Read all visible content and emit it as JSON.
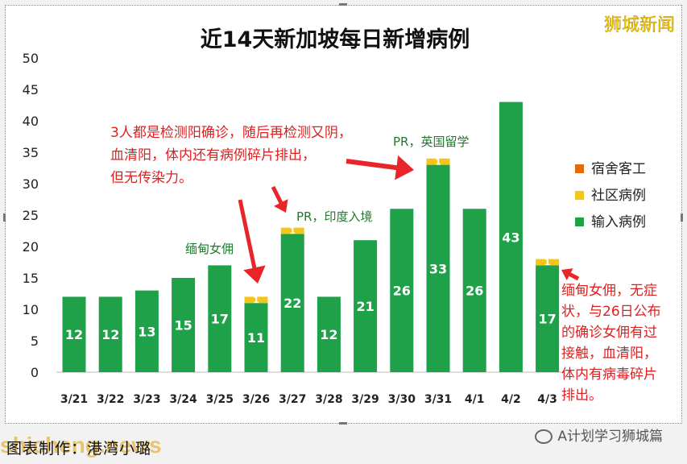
{
  "chart_data": {
    "type": "bar",
    "title": "近14天新加坡每日新增病例",
    "categories": [
      "3/21",
      "3/22",
      "3/23",
      "3/24",
      "3/25",
      "3/26",
      "3/27",
      "3/28",
      "3/29",
      "3/30",
      "3/31",
      "4/1",
      "4/2",
      "4/3"
    ],
    "series": [
      {
        "name": "宿舍客工",
        "color": "#e36c0a",
        "values": [
          0,
          0,
          0,
          0,
          0,
          0,
          0,
          0,
          0,
          0,
          0,
          0,
          0,
          0
        ]
      },
      {
        "name": "社区病例",
        "color": "#f5c518",
        "values": [
          0,
          0,
          0,
          0,
          0,
          1,
          1,
          0,
          0,
          0,
          1,
          0,
          0,
          1
        ]
      },
      {
        "name": "输入病例",
        "color": "#1fa14a",
        "values": [
          12,
          12,
          13,
          15,
          17,
          11,
          22,
          12,
          21,
          26,
          33,
          26,
          43,
          17
        ]
      }
    ],
    "ylim": [
      0,
      50
    ],
    "yticks": [
      "0",
      "5",
      "10",
      "15",
      "20",
      "25",
      "30",
      "35",
      "40",
      "45",
      "50"
    ],
    "legend_position": "right",
    "annotations": {
      "note_3_26_a": "3人都是检测阳确诊，随后再检测又阴，",
      "note_3_26_b": "血清阳，体内还有病例碎片排出，",
      "note_3_26_c": "但无传染力。",
      "note_3_25": "缅甸女佣",
      "note_3_27": "PR，印度入境",
      "note_3_31": "PR，英国留学",
      "note_4_3_lines": [
        "缅甸女佣，无症",
        "状，与26日公布",
        "的确诊女佣有过",
        "接触，血清阳，",
        "体内有病毒碎片",
        "排出。"
      ]
    }
  },
  "brand": "狮城新闻",
  "caption": "图表制作：港湾小璐",
  "watermark_left": "shicheng.news",
  "watermark_right": "A计划学习狮城篇",
  "arrow_color": "#e8262a"
}
